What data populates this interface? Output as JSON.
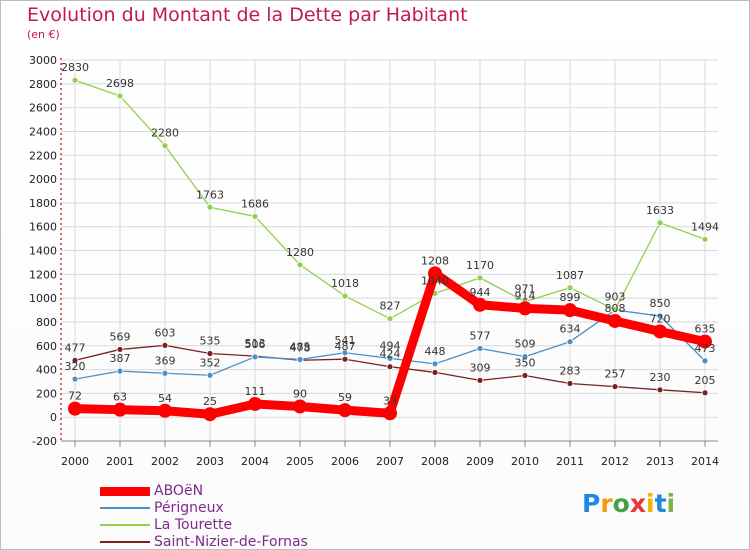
{
  "header": {
    "title": "Evolution du Montant de la Dette par Habitant",
    "unit": "(en €)"
  },
  "colors": {
    "title": "#c2185b",
    "legend_text": "#7e2b8c",
    "grid": "#d9d9d9",
    "axis_text": "#222222"
  },
  "logo": {
    "text": "Proxiti",
    "letters": [
      {
        "ch": "P",
        "color": "#1e88e5"
      },
      {
        "ch": "r",
        "color": "#f39c12"
      },
      {
        "ch": "o",
        "color": "#43a047"
      },
      {
        "ch": "x",
        "color": "#e53935"
      },
      {
        "ch": "i",
        "color": "#f4b400"
      },
      {
        "ch": "t",
        "color": "#1e88e5"
      },
      {
        "ch": "i",
        "color": "#7cb342"
      }
    ]
  },
  "chart_data": {
    "type": "line",
    "title": "Evolution du Montant de la Dette par Habitant",
    "subtitle": "(en €)",
    "x": [
      "2000",
      "2001",
      "2002",
      "2003",
      "2004",
      "2005",
      "2006",
      "2007",
      "2008",
      "2009",
      "2010",
      "2011",
      "2012",
      "2013",
      "2014"
    ],
    "ylim": [
      -200,
      3000
    ],
    "yticks": [
      -200,
      0,
      200,
      400,
      600,
      800,
      1000,
      1200,
      1400,
      1600,
      1800,
      2000,
      2200,
      2400,
      2600,
      2800,
      3000
    ],
    "grid": true,
    "legend_position": "bottom-left",
    "series": [
      {
        "name": "Saint-Nizier-de-Fornas",
        "color": "#7b1f1f",
        "width": 1.3,
        "values": [
          477,
          569,
          603,
          535,
          513,
          478,
          487,
          424,
          376,
          309,
          350,
          283,
          257,
          230,
          205
        ],
        "labels": [
          "477",
          "569",
          "603",
          "535",
          "513",
          "478",
          "487",
          "424",
          "",
          "309",
          "350",
          "283",
          "257",
          "230",
          "205"
        ]
      },
      {
        "name": "Périgneux",
        "color": "#4a90c9",
        "width": 1.3,
        "values": [
          320,
          387,
          369,
          352,
          506,
          485,
          541,
          494,
          448,
          577,
          509,
          634,
          900,
          850,
          473
        ],
        "labels": [
          "320",
          "387",
          "369",
          "352",
          "506",
          "485",
          "541",
          "494",
          "448",
          "577",
          "509",
          "634",
          "",
          "850",
          "473"
        ]
      },
      {
        "name": "La Tourette",
        "color": "#8fd14f",
        "width": 1.3,
        "values": [
          2830,
          2698,
          2280,
          1763,
          1686,
          1280,
          1018,
          827,
          1040,
          1170,
          971,
          1087,
          903,
          1633,
          1494
        ],
        "labels": [
          "2830",
          "2698",
          "2280",
          "1763",
          "1686",
          "1280",
          "1018",
          "827",
          "1040",
          "1170",
          "971",
          "1087",
          "903",
          "1633",
          "1494"
        ]
      },
      {
        "name": "ABOëN",
        "color": "#ff0000",
        "width": 9,
        "values": [
          72,
          63,
          54,
          25,
          111,
          90,
          59,
          33,
          1208,
          944,
          914,
          899,
          808,
          720,
          635
        ],
        "labels": [
          "72",
          "63",
          "54",
          "25",
          "111",
          "90",
          "59",
          "33",
          "1208",
          "944",
          "914",
          "899",
          "808",
          "720",
          "635"
        ]
      }
    ],
    "legend": [
      {
        "name": "ABOëN",
        "color": "#ff0000",
        "thickness": 9
      },
      {
        "name": "Périgneux",
        "color": "#4a90c9",
        "thickness": 2
      },
      {
        "name": "La Tourette",
        "color": "#8fd14f",
        "thickness": 2
      },
      {
        "name": "Saint-Nizier-de-Fornas",
        "color": "#7b1f1f",
        "thickness": 2
      }
    ]
  }
}
